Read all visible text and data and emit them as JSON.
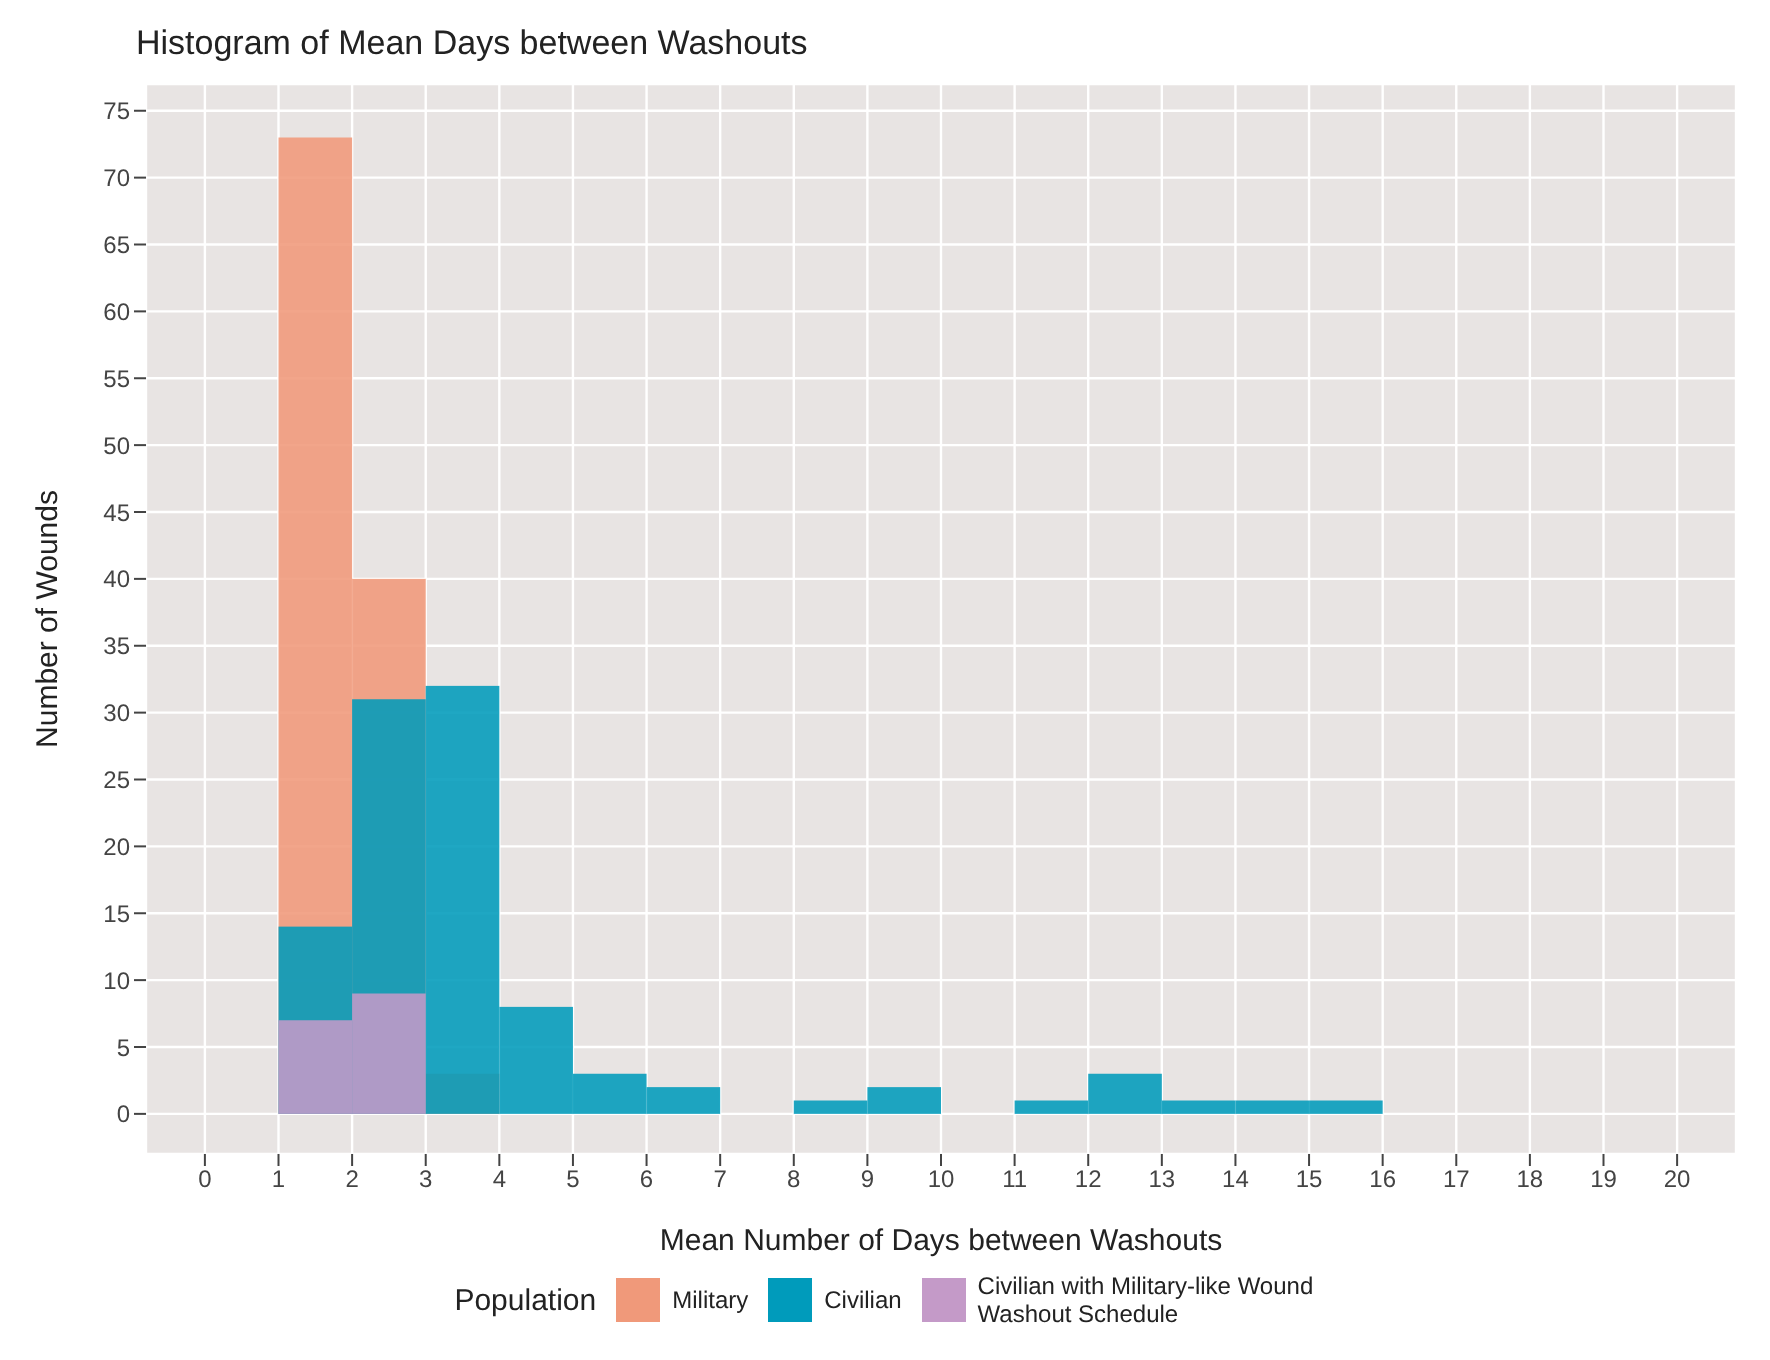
{
  "chart_data": {
    "type": "histogram",
    "title": "Histogram of Mean Days between Washouts",
    "xlabel": "Mean Number of Days between Washouts",
    "ylabel": "Number of Wounds",
    "legend_title": "Population",
    "bins": [
      1,
      2,
      3,
      4,
      5,
      6,
      7,
      8,
      9,
      10,
      11,
      12,
      13,
      14,
      15,
      16
    ],
    "series": [
      {
        "name": "Military",
        "color": "#f0997a",
        "values": [
          73,
          40,
          3,
          0,
          0,
          0,
          0,
          0,
          0,
          0,
          0,
          0,
          0,
          0,
          0
        ]
      },
      {
        "name": "Civilian",
        "color": "#009bbb",
        "values": [
          14,
          31,
          32,
          8,
          3,
          2,
          0,
          1,
          2,
          0,
          1,
          3,
          1,
          1,
          1
        ]
      },
      {
        "name": "Civilian with Military-like Wound Washout Schedule",
        "color": "#c49ac8",
        "values": [
          7,
          9,
          0,
          0,
          0,
          0,
          0,
          0,
          0,
          0,
          0,
          0,
          0,
          0,
          0
        ]
      }
    ],
    "xlim": [
      -0.8,
      20.8
    ],
    "xticks": [
      0,
      1,
      2,
      3,
      4,
      5,
      6,
      7,
      8,
      9,
      10,
      11,
      12,
      13,
      14,
      15,
      16,
      17,
      18,
      19,
      20
    ],
    "ylim": [
      -3,
      77
    ],
    "yticks": [
      0,
      5,
      10,
      15,
      20,
      25,
      30,
      35,
      40,
      45,
      50,
      55,
      60,
      65,
      70,
      75
    ],
    "grid": true,
    "legend": "bottom"
  }
}
